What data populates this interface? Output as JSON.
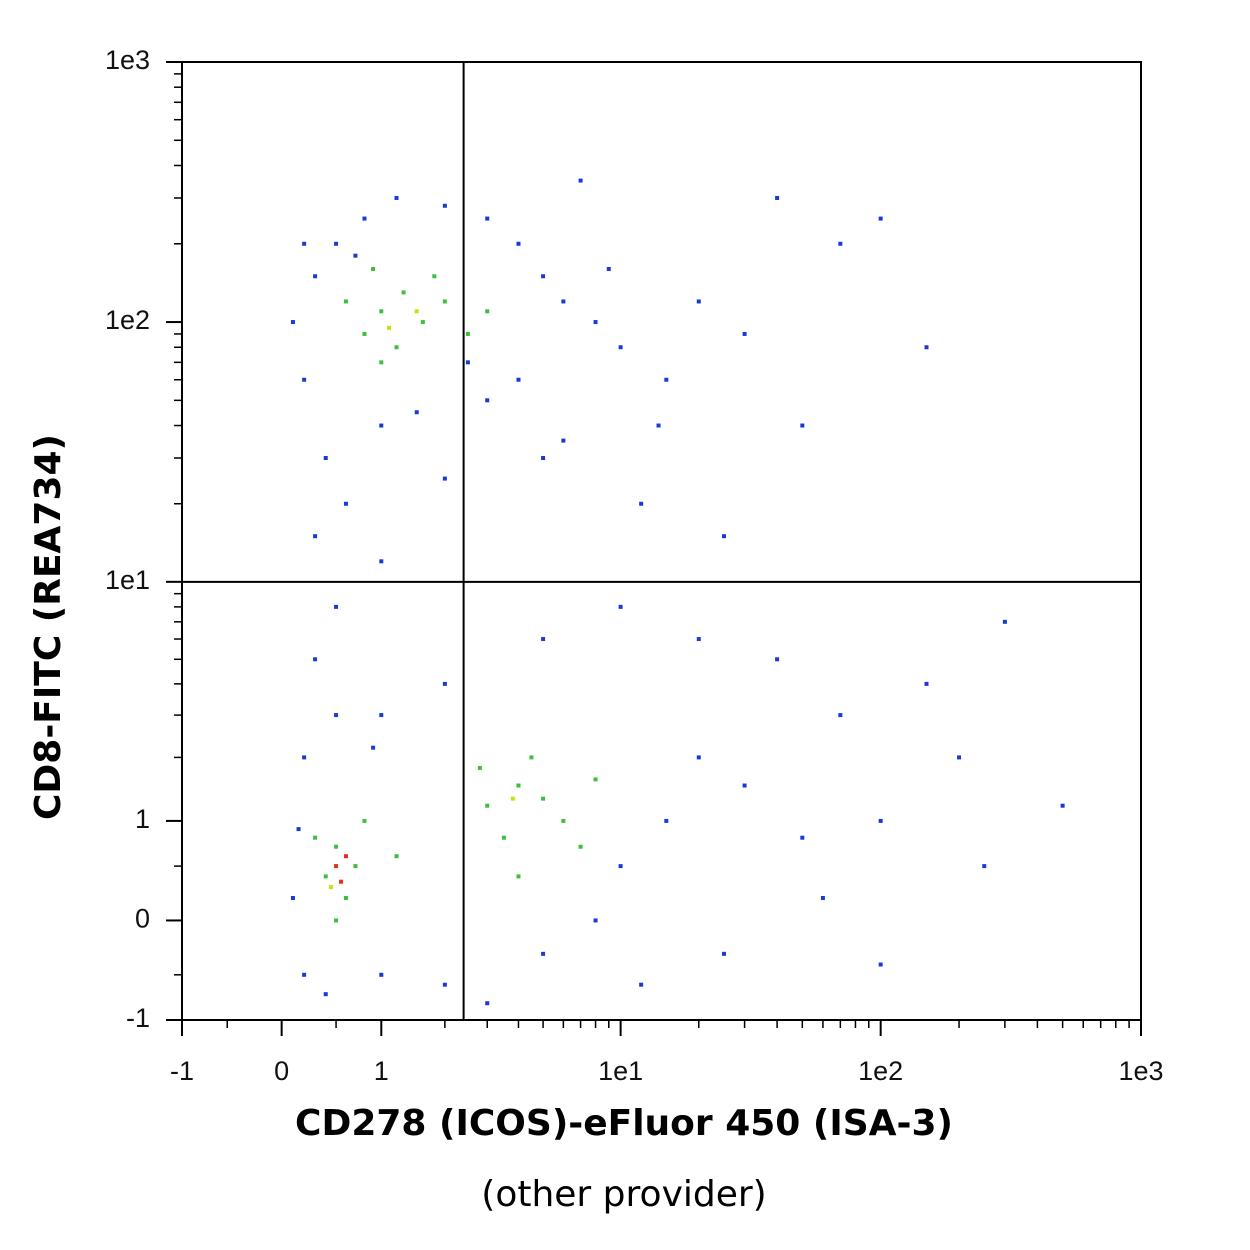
{
  "chart_data": {
    "type": "scatter",
    "xscale": "asinh",
    "yscale": "asinh",
    "xlabel": [
      "CD278 (ICOS)-eFluor 450 (ISA-3)",
      "(other provider)"
    ],
    "ylabel": "CD8-FITC (REA734)",
    "xlim": [
      -1,
      1000
    ],
    "ylim": [
      -1,
      1000
    ],
    "xticks": [
      -1,
      0,
      1,
      {
        "value": 10,
        "label": "1e1"
      },
      {
        "value": 100,
        "label": "1e2"
      },
      {
        "value": 1000,
        "label": "1e3"
      }
    ],
    "yticks": [
      -1,
      0,
      1,
      {
        "value": 10,
        "label": "1e1"
      },
      {
        "value": 100,
        "label": "1e2"
      },
      {
        "value": 1000,
        "label": "1e3"
      }
    ],
    "xminorticks": [
      -0.5,
      0.5,
      2,
      3,
      4,
      5,
      6,
      7,
      8,
      9,
      20,
      30,
      40,
      50,
      60,
      70,
      80,
      90,
      200,
      300,
      400,
      500,
      600,
      700,
      800,
      900
    ],
    "yminorticks": [
      -0.5,
      0.5,
      2,
      3,
      4,
      5,
      6,
      7,
      8,
      9,
      20,
      30,
      40,
      50,
      60,
      70,
      80,
      90,
      200,
      300,
      400,
      500,
      600,
      700,
      800,
      900
    ],
    "gates": {
      "x": 2.4,
      "y": 10
    },
    "series": [
      {
        "color": "#1a3ad6",
        "x": [
          0.2,
          0.3,
          0.5,
          0.8,
          1.2,
          2,
          3,
          4,
          5,
          6,
          8,
          10,
          15,
          20,
          30,
          50,
          0.4,
          0.6,
          0.3,
          1,
          2,
          3,
          5,
          12,
          25,
          70,
          100,
          150,
          40,
          0.1,
          0.2,
          7,
          1,
          0.5,
          0.3,
          0.1,
          0.2,
          0.4,
          1,
          2,
          3,
          5,
          8,
          10,
          15,
          20,
          30,
          50,
          70,
          100,
          150,
          200,
          300,
          500,
          40,
          20,
          10,
          5,
          2,
          1,
          0.5,
          0.2,
          60,
          25,
          12,
          100,
          250,
          0.7,
          1.5,
          2.5,
          4,
          6,
          9,
          14,
          0.15,
          0.9
        ],
        "y": [
          60,
          150,
          200,
          250,
          300,
          280,
          250,
          200,
          150,
          120,
          100,
          80,
          60,
          120,
          90,
          40,
          30,
          20,
          15,
          40,
          25,
          50,
          30,
          20,
          15,
          200,
          250,
          80,
          300,
          100,
          200,
          350,
          12,
          8,
          5,
          0.2,
          -0.5,
          -0.7,
          -0.5,
          -0.6,
          -0.8,
          -0.3,
          0,
          0.5,
          1,
          2,
          1.5,
          0.8,
          3,
          1,
          4,
          2,
          7,
          1.2,
          5,
          6,
          8,
          6,
          4,
          3,
          3,
          2,
          0.2,
          -0.3,
          -0.6,
          -0.4,
          0.5,
          180,
          45,
          70,
          60,
          35,
          160,
          40,
          0.9,
          2.2
        ]
      },
      {
        "color": "#3cc03c",
        "x": [
          0.8,
          1,
          1.3,
          1.6,
          2,
          1.2,
          0.6,
          2.5,
          1,
          1.8,
          3,
          0.9,
          0.4,
          0.5,
          0.6,
          0.7,
          0.3,
          0.8,
          0.5,
          1.2,
          3,
          4,
          3.5,
          5,
          4.5,
          6,
          2.8,
          7,
          4,
          8
        ],
        "y": [
          90,
          110,
          130,
          100,
          120,
          80,
          120,
          90,
          70,
          150,
          110,
          160,
          0.4,
          0.7,
          0.2,
          0.5,
          0.8,
          1,
          0,
          0.6,
          1.2,
          1.5,
          0.8,
          1.3,
          2,
          1,
          1.8,
          0.7,
          0.4,
          1.6
        ]
      },
      {
        "color": "#c8e00c",
        "x": [
          1.5,
          3.8,
          0.45,
          1.1
        ],
        "y": [
          110,
          1.3,
          0.3,
          95
        ]
      },
      {
        "color": "#e0301a",
        "x": [
          0.5,
          0.55,
          0.6
        ],
        "y": [
          0.5,
          0.35,
          0.6
        ]
      }
    ]
  }
}
